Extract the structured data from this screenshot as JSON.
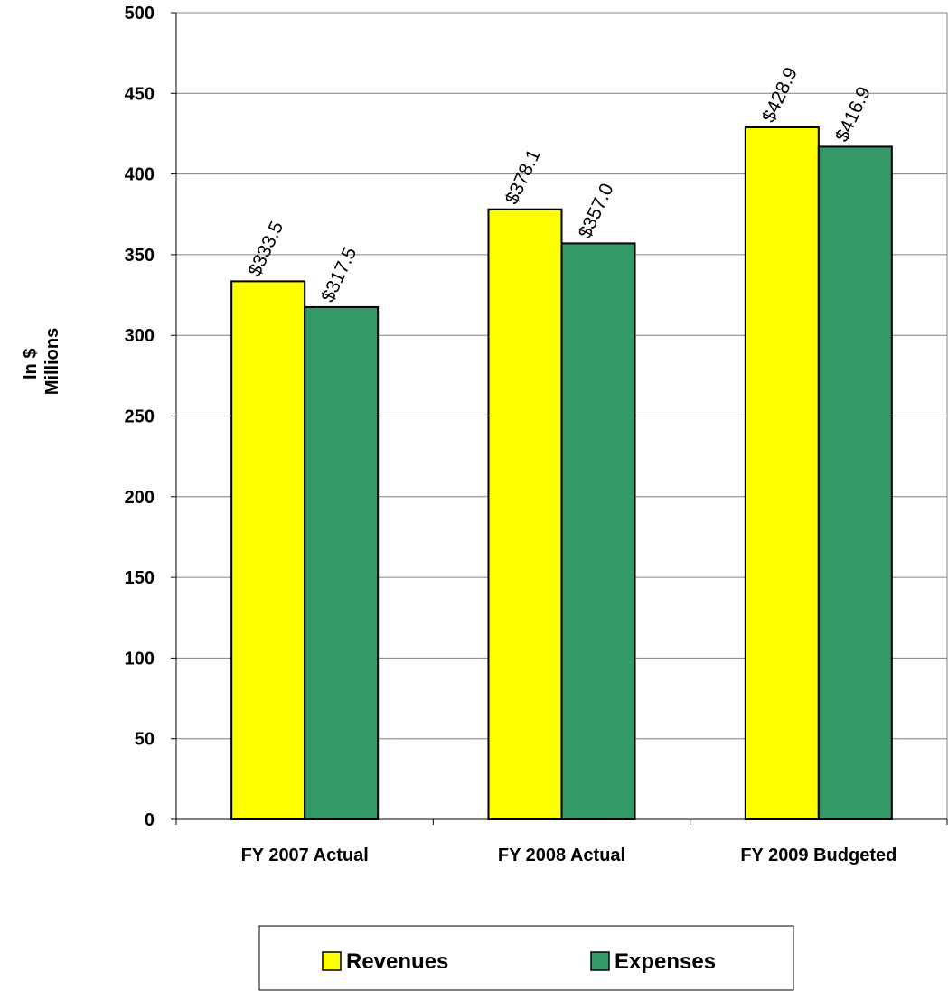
{
  "chart_data": {
    "type": "bar",
    "title": "",
    "ylabel_lines": [
      "In $",
      "Millions"
    ],
    "xlabel": "",
    "categories": [
      "FY 2007 Actual",
      "FY 2008 Actual",
      "FY 2009 Budgeted"
    ],
    "series": [
      {
        "name": "Revenues",
        "color": "#FFFF00",
        "values": [
          333.5,
          378.1,
          428.9
        ],
        "labels": [
          "$333.5",
          "$378.1",
          "$428.9"
        ]
      },
      {
        "name": "Expenses",
        "color": "#339966",
        "values": [
          317.5,
          357.0,
          416.9
        ],
        "labels": [
          "$317.5",
          "$357.0",
          "$416.9"
        ]
      }
    ],
    "ylim": [
      0,
      500
    ],
    "yticks": [
      0,
      50,
      100,
      150,
      200,
      250,
      300,
      350,
      400,
      450,
      500
    ],
    "grid": true,
    "legend_position": "bottom"
  }
}
